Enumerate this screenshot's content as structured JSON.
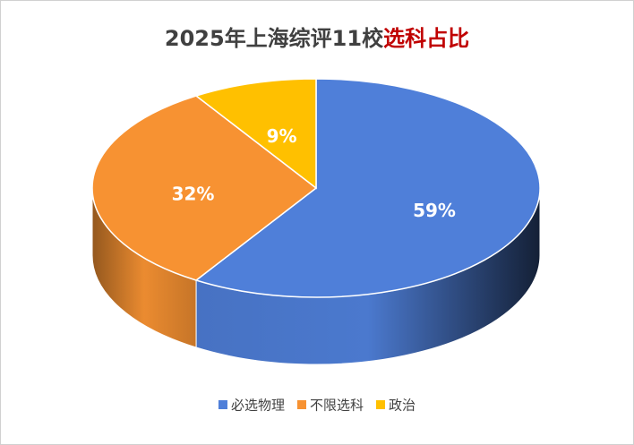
{
  "chart_data": {
    "type": "pie3d",
    "title": [
      {
        "text": "2025年上海综评11校",
        "color": "#404040"
      },
      {
        "text": "选科占比",
        "color": "#c00000"
      }
    ],
    "categories": [
      "必选物理",
      "不限选科",
      "政治"
    ],
    "values": [
      59,
      32,
      9
    ],
    "value_labels": [
      "59%",
      "32%",
      "9%"
    ],
    "colors": [
      "#4f7fd9",
      "#f79232",
      "#ffc000"
    ],
    "legend": "bottom"
  }
}
